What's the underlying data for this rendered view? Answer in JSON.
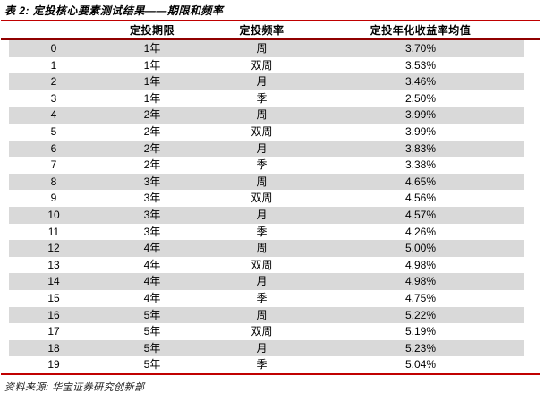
{
  "title": "表 2: 定投核心要素测试结果——期限和频率",
  "table": {
    "headers": [
      "",
      "定投期限",
      "定投频率",
      "定投年化收益率均值"
    ],
    "rows": [
      [
        "0",
        "1年",
        "周",
        "3.70%"
      ],
      [
        "1",
        "1年",
        "双周",
        "3.53%"
      ],
      [
        "2",
        "1年",
        "月",
        "3.46%"
      ],
      [
        "3",
        "1年",
        "季",
        "2.50%"
      ],
      [
        "4",
        "2年",
        "周",
        "3.99%"
      ],
      [
        "5",
        "2年",
        "双周",
        "3.99%"
      ],
      [
        "6",
        "2年",
        "月",
        "3.83%"
      ],
      [
        "7",
        "2年",
        "季",
        "3.38%"
      ],
      [
        "8",
        "3年",
        "周",
        "4.65%"
      ],
      [
        "9",
        "3年",
        "双周",
        "4.56%"
      ],
      [
        "10",
        "3年",
        "月",
        "4.57%"
      ],
      [
        "11",
        "3年",
        "季",
        "4.26%"
      ],
      [
        "12",
        "4年",
        "周",
        "5.00%"
      ],
      [
        "13",
        "4年",
        "双周",
        "4.98%"
      ],
      [
        "14",
        "4年",
        "月",
        "4.98%"
      ],
      [
        "15",
        "4年",
        "季",
        "4.75%"
      ],
      [
        "16",
        "5年",
        "周",
        "5.22%"
      ],
      [
        "17",
        "5年",
        "双周",
        "5.19%"
      ],
      [
        "18",
        "5年",
        "月",
        "5.23%"
      ],
      [
        "19",
        "5年",
        "季",
        "5.04%"
      ]
    ]
  },
  "footer": {
    "source": "资料来源: 华宝证券研究创新部"
  },
  "colors": {
    "accent_red": "#C00000",
    "header_line_red": "#900000",
    "row_alt_gray": "#D9D9D9"
  }
}
